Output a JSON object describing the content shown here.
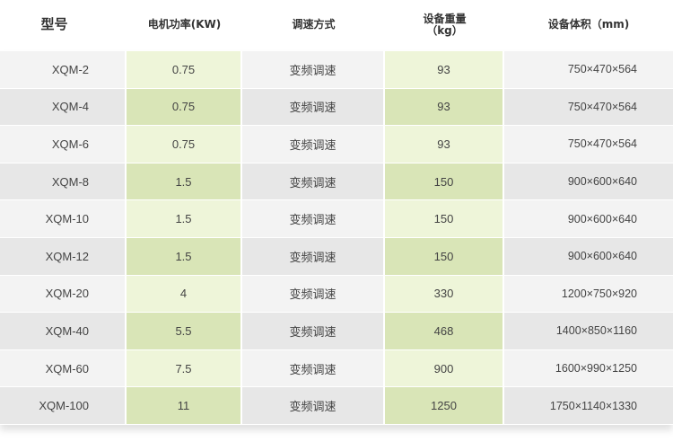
{
  "headers": [
    "型号",
    "电机功率(KW)",
    "调速方式",
    "设备重量",
    "（kg）",
    "设备体积（mm)"
  ],
  "colors": {
    "green_light": "#eef5d9",
    "green_dark": "#d9e5b7",
    "gray_light": "#f3f3f3",
    "gray_dark": "#e7e7e7"
  },
  "rows": [
    [
      "XQM-2",
      "0.75",
      "变频调速",
      "93",
      "750×470×564"
    ],
    [
      "XQM-4",
      "0.75",
      "变频调速",
      "93",
      "750×470×564"
    ],
    [
      "XQM-6",
      "0.75",
      "变频调速",
      "93",
      "750×470×564"
    ],
    [
      "XQM-8",
      "1.5",
      "变频调速",
      "150",
      "900×600×640"
    ],
    [
      "XQM-10",
      "1.5",
      "变频调速",
      "150",
      "900×600×640"
    ],
    [
      "XQM-12",
      "1.5",
      "变频调速",
      "150",
      "900×600×640"
    ],
    [
      "XQM-20",
      "4",
      "变频调速",
      "330",
      "1200×750×920"
    ],
    [
      "XQM-40",
      "5.5",
      "变频调速",
      "468",
      "1400×850×1160"
    ],
    [
      "XQM-60",
      "7.5",
      "变频调速",
      "900",
      "1600×990×1250"
    ],
    [
      "XQM-100",
      "11",
      "变频调速",
      "1250",
      "1750×1140×1330"
    ]
  ]
}
